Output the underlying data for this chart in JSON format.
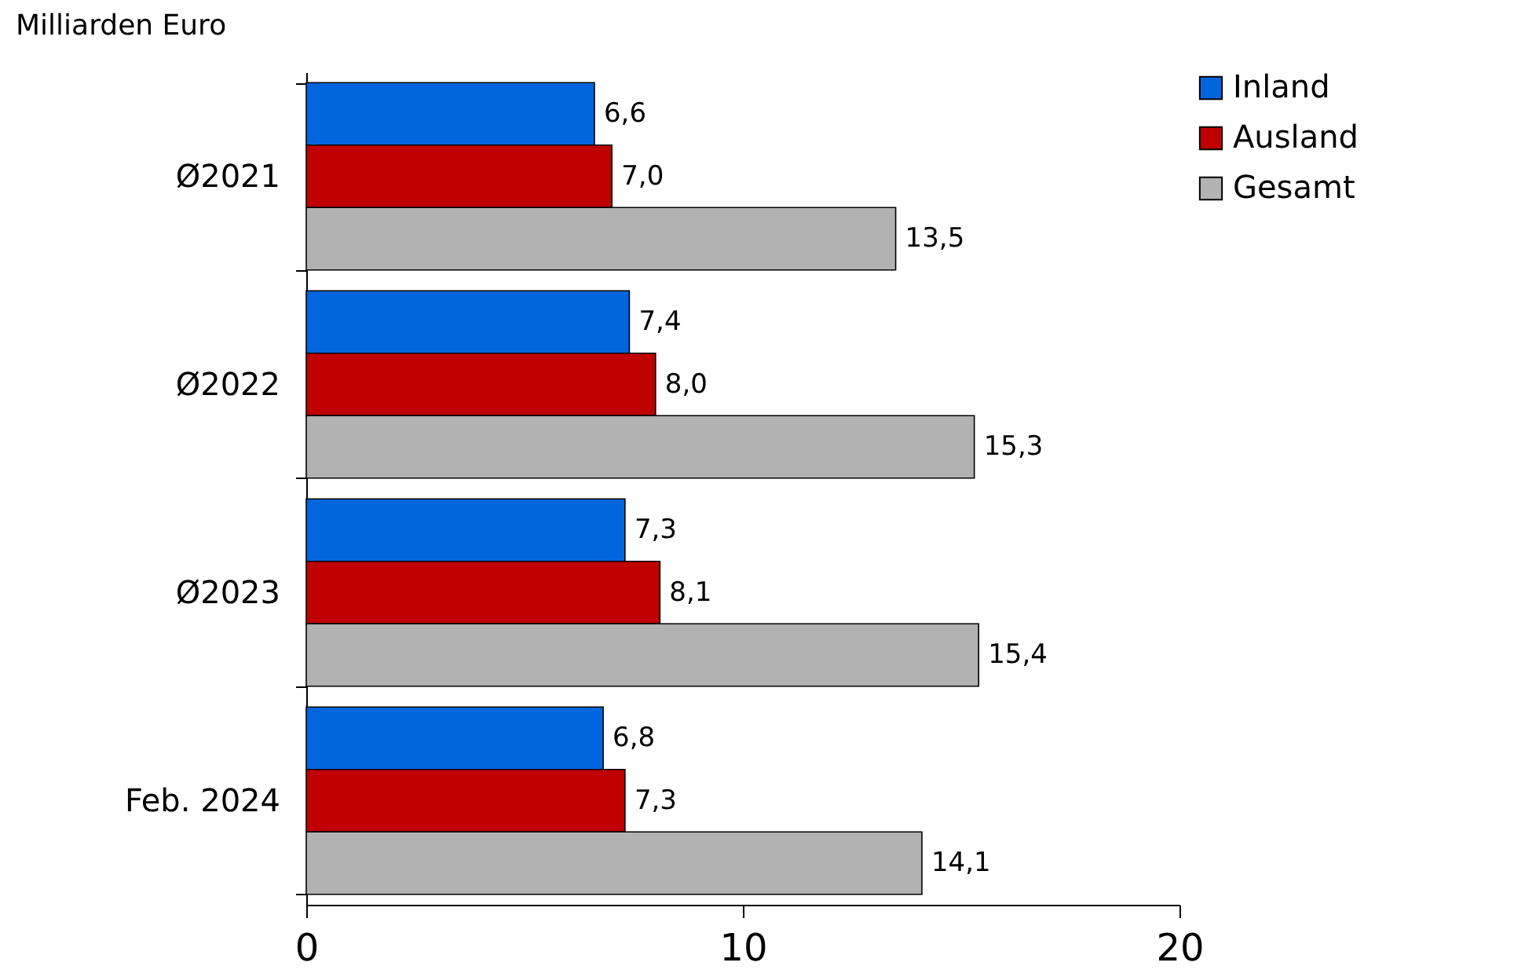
{
  "chart_data": {
    "type": "bar",
    "orientation": "horizontal",
    "title": "Milliarden Euro",
    "categories": [
      "Ø2021",
      "Ø2022",
      "Ø2023",
      "Feb. 2024"
    ],
    "series": [
      {
        "name": "Inland",
        "color": "#0066dd",
        "values": [
          6.6,
          7.4,
          7.3,
          6.8
        ],
        "value_labels": [
          "6,6",
          "7,4",
          "7,3",
          "6,8"
        ]
      },
      {
        "name": "Ausland",
        "color": "#c00000",
        "values": [
          7.0,
          8.0,
          8.1,
          7.3
        ],
        "value_labels": [
          "7,0",
          "8,0",
          "8,1",
          "7,3"
        ]
      },
      {
        "name": "Gesamt",
        "color": "#b2b2b2",
        "values": [
          13.5,
          15.3,
          15.4,
          14.1
        ],
        "value_labels": [
          "13,5",
          "15,3",
          "15,4",
          "14,1"
        ]
      }
    ],
    "xlim": [
      0,
      20
    ],
    "xticks": [
      0,
      10,
      20
    ],
    "grid": false,
    "legend": "right"
  }
}
